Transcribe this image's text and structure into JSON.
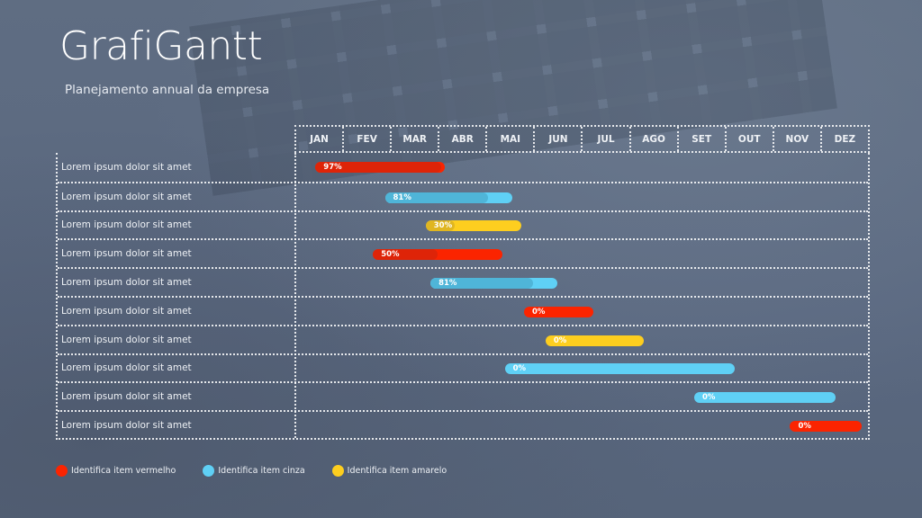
{
  "header": {
    "title": "GrafiGantt",
    "subtitle": "Planejamento annual da empresa"
  },
  "colors": {
    "red": "#fb2400",
    "red_done": "#de2408",
    "blue": "#5fd0f5",
    "blue_done": "#4fb5d8",
    "yellow": "#fdce1f",
    "yellow_done": "#e0b621"
  },
  "chart_data": {
    "type": "gantt",
    "title": "GrafiGantt",
    "subtitle": "Planejamento annual da empresa",
    "months": [
      "JAN",
      "FEV",
      "MAR",
      "ABR",
      "MAI",
      "JUN",
      "JUL",
      "AGO",
      "SET",
      "OUT",
      "NOV",
      "DEZ"
    ],
    "tasks": [
      {
        "label": "Lorem ipsum dolor sit amet",
        "color": "red",
        "start": 0.4,
        "end": 3.1,
        "progress": 97,
        "progress_label": "97%"
      },
      {
        "label": "Lorem ipsum dolor sit amet",
        "color": "blue",
        "start": 1.85,
        "end": 4.5,
        "progress": 81,
        "progress_label": "81%"
      },
      {
        "label": "Lorem ipsum dolor sit amet",
        "color": "yellow",
        "start": 2.7,
        "end": 4.7,
        "progress": 30,
        "progress_label": "30%"
      },
      {
        "label": "Lorem ipsum dolor sit amet",
        "color": "red",
        "start": 1.6,
        "end": 4.3,
        "progress": 50,
        "progress_label": "50%"
      },
      {
        "label": "Lorem ipsum dolor sit amet",
        "color": "blue",
        "start": 2.8,
        "end": 5.45,
        "progress": 81,
        "progress_label": "81%"
      },
      {
        "label": "Lorem ipsum dolor sit amet",
        "color": "red",
        "start": 4.75,
        "end": 6.2,
        "progress": 0,
        "progress_label": "0%"
      },
      {
        "label": "Lorem ipsum dolor sit amet",
        "color": "yellow",
        "start": 5.2,
        "end": 7.25,
        "progress": 0,
        "progress_label": "0%"
      },
      {
        "label": "Lorem ipsum dolor sit amet",
        "color": "blue",
        "start": 4.35,
        "end": 9.15,
        "progress": 0,
        "progress_label": "0%"
      },
      {
        "label": "Lorem ipsum dolor sit amet",
        "color": "blue",
        "start": 8.3,
        "end": 11.25,
        "progress": 0,
        "progress_label": "0%"
      },
      {
        "label": "Lorem ipsum dolor sit amet",
        "color": "red",
        "start": 10.3,
        "end": 11.8,
        "progress": 0,
        "progress_label": "0%"
      }
    ],
    "legend": [
      {
        "color": "red",
        "label": "Identifica item vermelho"
      },
      {
        "color": "blue",
        "label": "Identifica item cinza"
      },
      {
        "color": "yellow",
        "label": "Identifica item amarelo"
      }
    ]
  }
}
